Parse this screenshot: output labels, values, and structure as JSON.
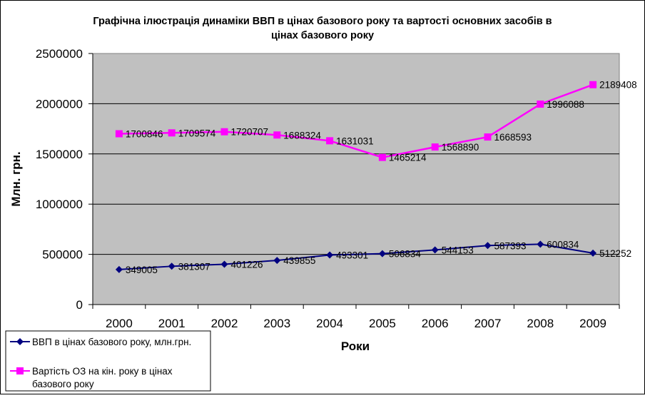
{
  "chart_data": {
    "type": "line",
    "title_lines": [
      "Графічна ілюстрація динаміки ВВП в цінах базового року та вартості основних засобів в",
      "цінах базового року"
    ],
    "xlabel": "Роки",
    "ylabel": "Млн. грн.",
    "categories": [
      "2000",
      "2001",
      "2002",
      "2003",
      "2004",
      "2005",
      "2006",
      "2007",
      "2008",
      "2009"
    ],
    "ylim": [
      0,
      2500000
    ],
    "yticks": [
      "0",
      "500000",
      "1000000",
      "1500000",
      "2000000",
      "2500000"
    ],
    "grid": "horizontal",
    "plot_background": "#c0c0c0",
    "legend_position": "bottom-left",
    "series": [
      {
        "name": "ВВП в цінах базового року, млн.грн.",
        "legend_lines": [
          "ВВП в цінах базового року, млн.грн."
        ],
        "color": "#000080",
        "marker": "diamond",
        "values": [
          349005,
          381307,
          401226,
          439855,
          493301,
          506834,
          544153,
          587393,
          600834,
          512252
        ],
        "labels": [
          "349005",
          "381307",
          "401226",
          "439855",
          "493301",
          "506834",
          "544153",
          "587393",
          "600834",
          "512252"
        ]
      },
      {
        "name": "Вартість ОЗ на кін. року в цінах базового року",
        "legend_lines": [
          "Вартість ОЗ на кін. року в цінах",
          "базового року"
        ],
        "color": "#ff00ff",
        "marker": "square",
        "values": [
          1700846,
          1709574,
          1720707,
          1688324,
          1631031,
          1465214,
          1568890,
          1668593,
          1996088,
          2189408
        ],
        "labels": [
          "1700846",
          "1709574",
          "1720707",
          "1688324",
          "1631031",
          "1465214",
          "1568890",
          "1668593",
          "1996088",
          "2189408"
        ]
      }
    ]
  }
}
